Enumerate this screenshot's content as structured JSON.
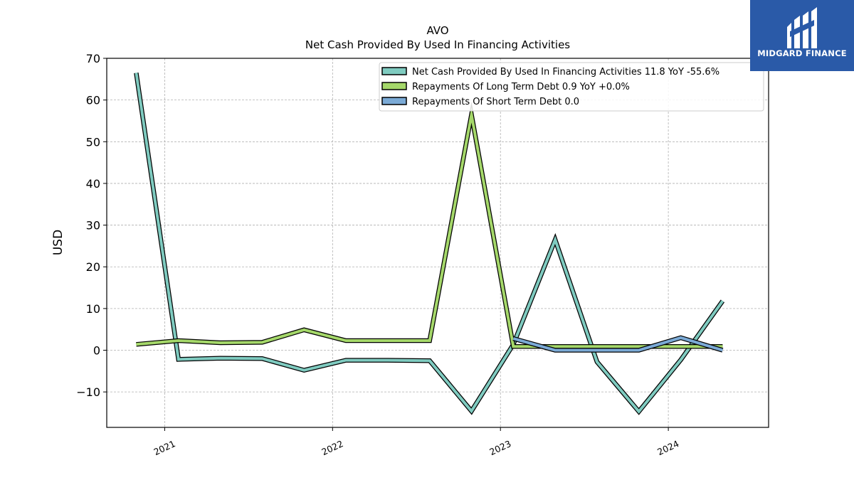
{
  "logo": {
    "text": "MIDGARD FINANCE",
    "color": "#2a5aa8"
  },
  "chart_data": {
    "type": "line",
    "title": "AVO",
    "subtitle": "Net Cash Provided By Used In Financing Activities",
    "xlabel": "",
    "ylabel": "USD",
    "ylim": [
      -18.5,
      70
    ],
    "yticks": [
      -10,
      0,
      10,
      20,
      30,
      40,
      50,
      60,
      70
    ],
    "ytick_labels": [
      "−10",
      "0",
      "10",
      "20",
      "30",
      "40",
      "50",
      "60",
      "70"
    ],
    "xlim": [
      "2020-08-28",
      "2024-08-06"
    ],
    "xticks": [
      "2021-01-01",
      "2022-01-01",
      "2023-01-01",
      "2024-01-01"
    ],
    "xtick_labels": [
      "2021",
      "2022",
      "2023",
      "2024"
    ],
    "grid": true,
    "legend_position": "top-right",
    "series": [
      {
        "name": "Net Cash Provided By Used In Financing Activities",
        "legend_label": "Net Cash Provided By Used In Financing Activities  11.8 YoY -55.6%",
        "color": "#7fcbc0",
        "x": [
          "2020-10-31",
          "2021-01-31",
          "2021-05-02",
          "2021-08-01",
          "2021-10-31",
          "2022-01-30",
          "2022-05-01",
          "2022-07-31",
          "2022-10-30",
          "2023-01-29",
          "2023-04-30",
          "2023-07-30",
          "2023-10-29",
          "2024-01-28",
          "2024-04-28"
        ],
        "values": [
          66.5,
          -2.2,
          -1.9,
          -2.0,
          -4.8,
          -2.4,
          -2.4,
          -2.5,
          -14.6,
          1.4,
          26.5,
          -2.8,
          -14.7,
          -2.3,
          11.8
        ]
      },
      {
        "name": "Repayments Of Long Term Debt",
        "legend_label": "Repayments Of Long Term Debt  0.9 YoY +0.0%",
        "color": "#a5d86a",
        "x": [
          "2020-10-31",
          "2021-01-31",
          "2021-05-02",
          "2021-08-01",
          "2021-10-31",
          "2022-01-30",
          "2022-05-01",
          "2022-07-31",
          "2022-10-30",
          "2023-01-29",
          "2023-04-30",
          "2023-07-30",
          "2023-10-29",
          "2024-01-28",
          "2024-04-28"
        ],
        "values": [
          1.4,
          2.3,
          1.8,
          1.9,
          4.9,
          2.3,
          2.3,
          2.3,
          56.5,
          0.9,
          0.9,
          0.9,
          0.9,
          0.9,
          0.9
        ]
      },
      {
        "name": "Repayments Of Short Term Debt",
        "legend_label": "Repayments Of Short Term Debt  0.0",
        "color": "#7baad6",
        "x": [
          "2023-01-29",
          "2023-04-30",
          "2023-07-30",
          "2023-10-29",
          "2024-01-28",
          "2024-04-28"
        ],
        "values": [
          2.8,
          0.0,
          0.0,
          0.0,
          3.0,
          0.0
        ]
      }
    ]
  }
}
